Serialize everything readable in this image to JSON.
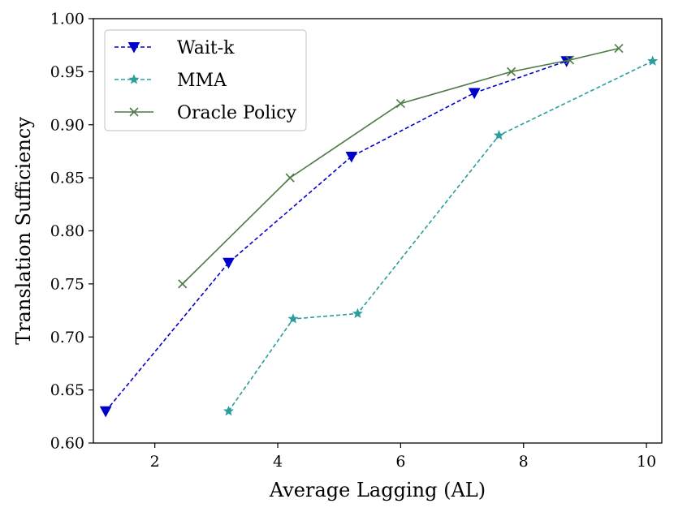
{
  "chart_data": {
    "type": "line",
    "title": "",
    "xlabel": "Average Lagging (AL)",
    "ylabel": "Translation Sufficiency",
    "xlim": [
      1.0,
      10.25
    ],
    "ylim": [
      0.6,
      1.0
    ],
    "xticks": [
      2,
      4,
      6,
      8,
      10
    ],
    "yticks": [
      0.6,
      0.65,
      0.7,
      0.75,
      0.8,
      0.85,
      0.9,
      0.95,
      1.0
    ],
    "grid": false,
    "legend_position": "top-left",
    "series": [
      {
        "name": "Wait-k",
        "color": "#0000cc",
        "linestyle": "dashed",
        "marker": "triangle-down",
        "points": [
          [
            1.2,
            0.63
          ],
          [
            3.2,
            0.77
          ],
          [
            5.2,
            0.87
          ],
          [
            7.2,
            0.93
          ],
          [
            8.7,
            0.96
          ]
        ]
      },
      {
        "name": "MMA",
        "color": "#2a9d9d",
        "linestyle": "dashed",
        "marker": "star",
        "points": [
          [
            3.2,
            0.63
          ],
          [
            4.25,
            0.717
          ],
          [
            5.3,
            0.722
          ],
          [
            7.6,
            0.89
          ],
          [
            10.1,
            0.96
          ]
        ]
      },
      {
        "name": "Oracle Policy",
        "color": "#4d7a45",
        "linestyle": "solid",
        "marker": "x",
        "points": [
          [
            2.45,
            0.75
          ],
          [
            4.2,
            0.85
          ],
          [
            6.0,
            0.92
          ],
          [
            7.8,
            0.95
          ],
          [
            8.75,
            0.961
          ],
          [
            9.55,
            0.972
          ]
        ]
      }
    ]
  }
}
